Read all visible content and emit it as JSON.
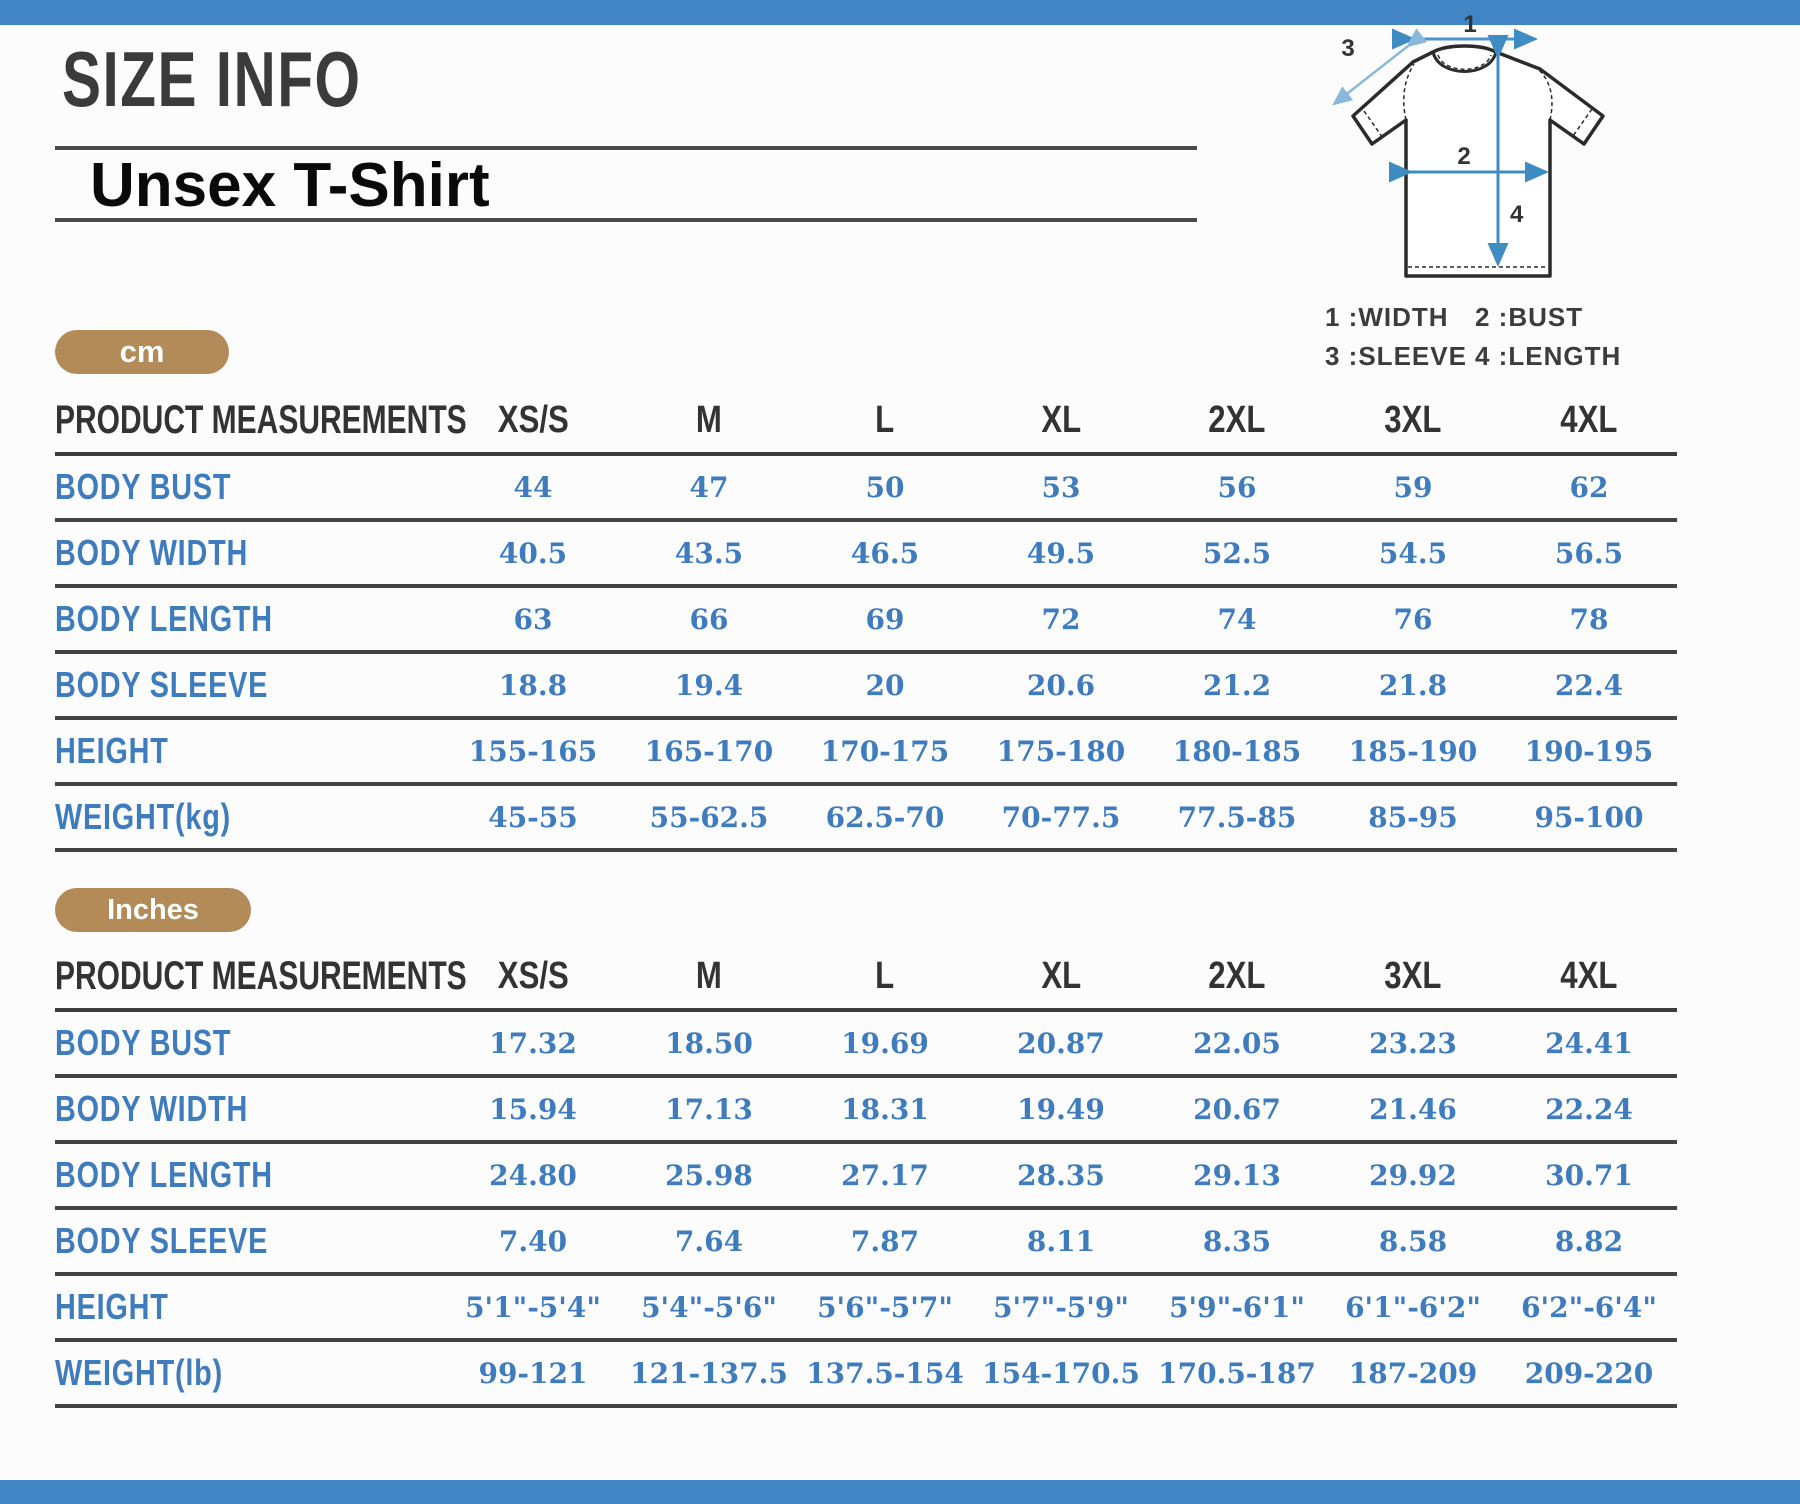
{
  "page": {
    "title": "SIZE INFO",
    "subtitle": "Unsex T-Shirt"
  },
  "colors": {
    "accent_bar_blue": "#4285c4",
    "value_blue": "#3e7cbe",
    "badge_tan": "#b28b59",
    "heading_dark": "#3b3b3b",
    "line_dark": "#424242"
  },
  "diagram": {
    "arrow_labels": [
      "1",
      "2",
      "3",
      "4"
    ],
    "legend": [
      "1 :WIDTH",
      "2 :BUST",
      "3 :SLEEVE",
      "4 :LENGTH"
    ]
  },
  "tables": [
    {
      "unit_badge": "cm",
      "columns": [
        "PRODUCT MEASUREMENTS",
        "XS/S",
        "M",
        "L",
        "XL",
        "2XL",
        "3XL",
        "4XL"
      ],
      "rows": [
        {
          "label": "BODY BUST",
          "values": [
            "44",
            "47",
            "50",
            "53",
            "56",
            "59",
            "62"
          ]
        },
        {
          "label": "BODY WIDTH",
          "values": [
            "40.5",
            "43.5",
            "46.5",
            "49.5",
            "52.5",
            "54.5",
            "56.5"
          ]
        },
        {
          "label": "BODY LENGTH",
          "values": [
            "63",
            "66",
            "69",
            "72",
            "74",
            "76",
            "78"
          ]
        },
        {
          "label": "BODY SLEEVE",
          "values": [
            "18.8",
            "19.4",
            "20",
            "20.6",
            "21.2",
            "21.8",
            "22.4"
          ]
        },
        {
          "label": "HEIGHT",
          "values": [
            "155-165",
            "165-170",
            "170-175",
            "175-180",
            "180-185",
            "185-190",
            "190-195"
          ]
        },
        {
          "label": "WEIGHT(kg)",
          "values": [
            "45-55",
            "55-62.5",
            "62.5-70",
            "70-77.5",
            "77.5-85",
            "85-95",
            "95-100"
          ]
        }
      ]
    },
    {
      "unit_badge": "Inches",
      "columns": [
        "PRODUCT MEASUREMENTS",
        "XS/S",
        "M",
        "L",
        "XL",
        "2XL",
        "3XL",
        "4XL"
      ],
      "rows": [
        {
          "label": "BODY BUST",
          "values": [
            "17.32",
            "18.50",
            "19.69",
            "20.87",
            "22.05",
            "23.23",
            "24.41"
          ]
        },
        {
          "label": "BODY WIDTH",
          "values": [
            "15.94",
            "17.13",
            "18.31",
            "19.49",
            "20.67",
            "21.46",
            "22.24"
          ]
        },
        {
          "label": "BODY LENGTH",
          "values": [
            "24.80",
            "25.98",
            "27.17",
            "28.35",
            "29.13",
            "29.92",
            "30.71"
          ]
        },
        {
          "label": "BODY SLEEVE",
          "values": [
            "7.40",
            "7.64",
            "7.87",
            "8.11",
            "8.35",
            "8.58",
            "8.82"
          ]
        },
        {
          "label": "HEIGHT",
          "values": [
            "5'1\"-5'4\"",
            "5'4\"-5'6\"",
            "5'6\"-5'7\"",
            "5'7\"-5'9\"",
            "5'9\"-6'1\"",
            "6'1\"-6'2\"",
            "6'2\"-6'4\""
          ]
        },
        {
          "label": "WEIGHT(lb)",
          "values": [
            "99-121",
            "121-137.5",
            "137.5-154",
            "154-170.5",
            "170.5-187",
            "187-209",
            "209-220"
          ]
        }
      ]
    }
  ]
}
